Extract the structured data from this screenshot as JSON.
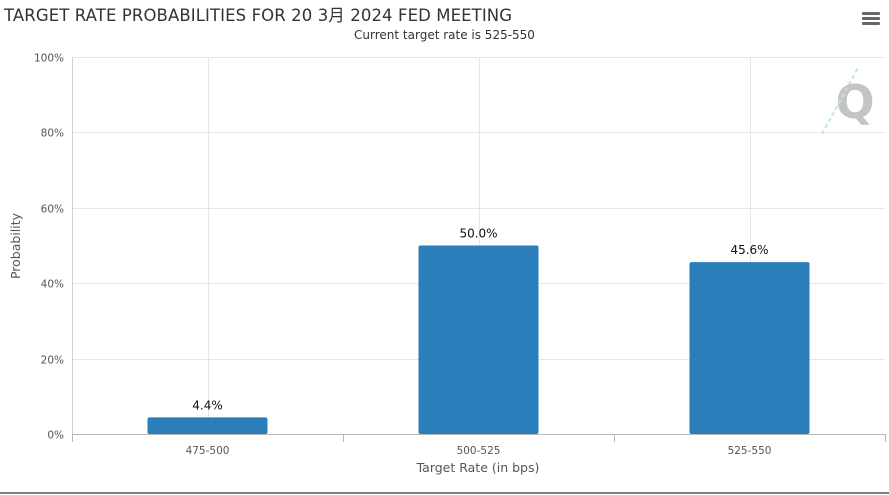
{
  "chart_data": {
    "type": "bar",
    "title": "TARGET RATE PROBABILITIES FOR 20 3月 2024 FED MEETING",
    "subtitle": "Current target rate is 525-550",
    "xlabel": "Target Rate (in bps)",
    "ylabel": "Probability",
    "categories": [
      "475-500",
      "500-525",
      "525-550"
    ],
    "values": [
      4.4,
      50.0,
      45.6
    ],
    "data_labels": [
      "4.4%",
      "50.0%",
      "45.6%"
    ],
    "ylim": [
      0,
      100
    ],
    "yticks": [
      "0%",
      "20%",
      "40%",
      "60%",
      "80%",
      "100%"
    ],
    "grid": true,
    "legend": "none",
    "bar_color": "#2a7fba"
  },
  "toolbar": {
    "menu_icon": "hamburger-menu-icon"
  },
  "watermark": {
    "logo_letter": "Q"
  }
}
